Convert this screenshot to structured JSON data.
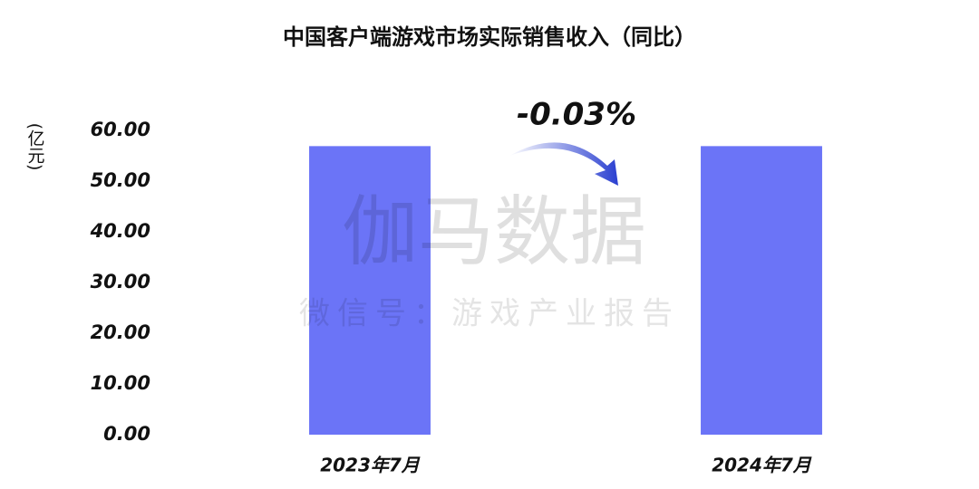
{
  "chart_data": {
    "type": "bar",
    "title": "中国客户端游戏市场实际销售收入（同比）",
    "y_label": "(亿元)",
    "categories": [
      "2023年7月",
      "2024年7月"
    ],
    "values": [
      56.9,
      56.9
    ],
    "color": "#6b74f7",
    "ylim": [
      0,
      60
    ],
    "yticks": [
      {
        "value": 0,
        "label": "0.00"
      },
      {
        "value": 10,
        "label": "10.00"
      },
      {
        "value": 20,
        "label": "20.00"
      },
      {
        "value": 30,
        "label": "30.00"
      },
      {
        "value": 40,
        "label": "40.00"
      },
      {
        "value": 50,
        "label": "50.00"
      },
      {
        "value": 60,
        "label": "60.00"
      }
    ],
    "grid": false,
    "annotation": "-0.03%",
    "watermark": {
      "title": "伽马数据",
      "subtitle": "微信号：游戏产业报告"
    }
  }
}
